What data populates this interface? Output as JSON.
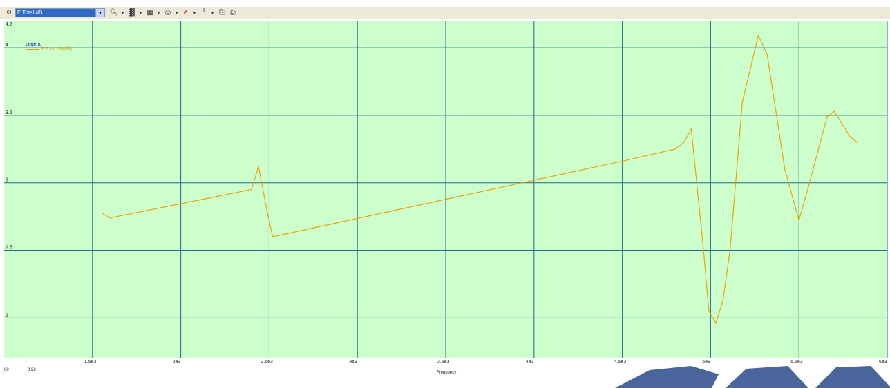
{
  "toolbar": {
    "selector_value": "E Total dB",
    "icons": [
      "refresh-icon",
      "zoom-icon",
      "trace-icon",
      "plot-properties-icon",
      "marker-icon",
      "line-style-icon",
      "axis-icon",
      "copy-icon",
      "print-icon"
    ]
  },
  "legend": {
    "title": "Legend",
    "entry": "E Total dB(dB)"
  },
  "status": {
    "left": "60",
    "value": "0.52"
  },
  "chart_data": {
    "type": "line",
    "xlabel": "Frequency",
    "ylabel": "",
    "xlim": [
      1000,
      6000
    ],
    "ylim": [
      1.7,
      4.2
    ],
    "x_ticks": [
      1500,
      2000,
      2500,
      3000,
      3500,
      4000,
      4500,
      5000,
      5500,
      6000
    ],
    "x_tick_labels": [
      "1.5e3",
      "2e3",
      "2.5e3",
      "3e3",
      "3.5e3",
      "4e3",
      "4.5e3",
      "5e3",
      "5.5e3",
      "6e3"
    ],
    "y_ticks": [
      2,
      2.5,
      3,
      3.5,
      4
    ],
    "y_tick_labels": [
      "2",
      "2.5",
      "3",
      "3.5",
      "4"
    ],
    "y_top_label": "4.2",
    "grid": true,
    "background": "#ccffcc",
    "grid_color": "#1f6b8c",
    "legend_position": "top-left",
    "series": [
      {
        "name": "E Total dB(dB)",
        "color": "#f0a000",
        "x": [
          1560,
          1600,
          2400,
          2440,
          2490,
          2520,
          4500,
          4800,
          4850,
          4890,
          4960,
          4990,
          5030,
          5070,
          5110,
          5180,
          5270,
          5320,
          5420,
          5500,
          5560,
          5660,
          5700,
          5790,
          5830
        ],
        "y": [
          2.77,
          2.74,
          2.95,
          3.12,
          2.78,
          2.6,
          3.16,
          3.25,
          3.3,
          3.4,
          2.5,
          2.05,
          1.96,
          2.13,
          2.5,
          3.6,
          4.09,
          3.95,
          3.1,
          2.72,
          3.0,
          3.49,
          3.53,
          3.34,
          3.3
        ]
      }
    ]
  }
}
